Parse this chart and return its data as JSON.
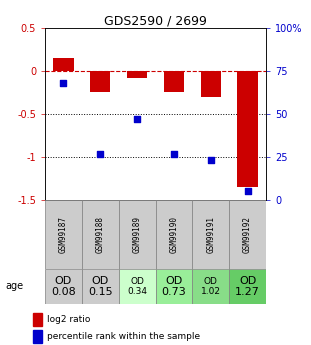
{
  "title": "GDS2590 / 2699",
  "samples": [
    "GSM99187",
    "GSM99188",
    "GSM99189",
    "GSM99190",
    "GSM99191",
    "GSM99192"
  ],
  "log2_ratio": [
    0.15,
    -0.25,
    -0.08,
    -0.25,
    -0.3,
    -1.35
  ],
  "percentile_rank": [
    68,
    27,
    47,
    27,
    23,
    5
  ],
  "ylim_left": [
    -1.5,
    0.5
  ],
  "ylim_right": [
    0,
    100
  ],
  "yticks_left": [
    -1.5,
    -1.0,
    -0.5,
    0.0,
    0.5
  ],
  "ytick_labels_left": [
    "-1.5",
    "-1",
    "-0.5",
    "0",
    "0.5"
  ],
  "yticks_right": [
    0,
    25,
    50,
    75,
    100
  ],
  "ytick_labels_right": [
    "0",
    "25",
    "50",
    "75",
    "100%"
  ],
  "bar_color": "#cc0000",
  "dot_color": "#0000cc",
  "hline_color": "#cc0000",
  "age_labels": [
    "OD\n0.08",
    "OD\n0.15",
    "OD\n0.34",
    "OD\n0.73",
    "OD\n1.02",
    "OD\n1.27"
  ],
  "age_label_small": [
    false,
    false,
    true,
    false,
    true,
    false
  ],
  "age_bg_colors": [
    "#cccccc",
    "#cccccc",
    "#ccffcc",
    "#99ee99",
    "#88dd88",
    "#66cc66"
  ],
  "legend_log2": "log2 ratio",
  "legend_pct": "percentile rank within the sample"
}
